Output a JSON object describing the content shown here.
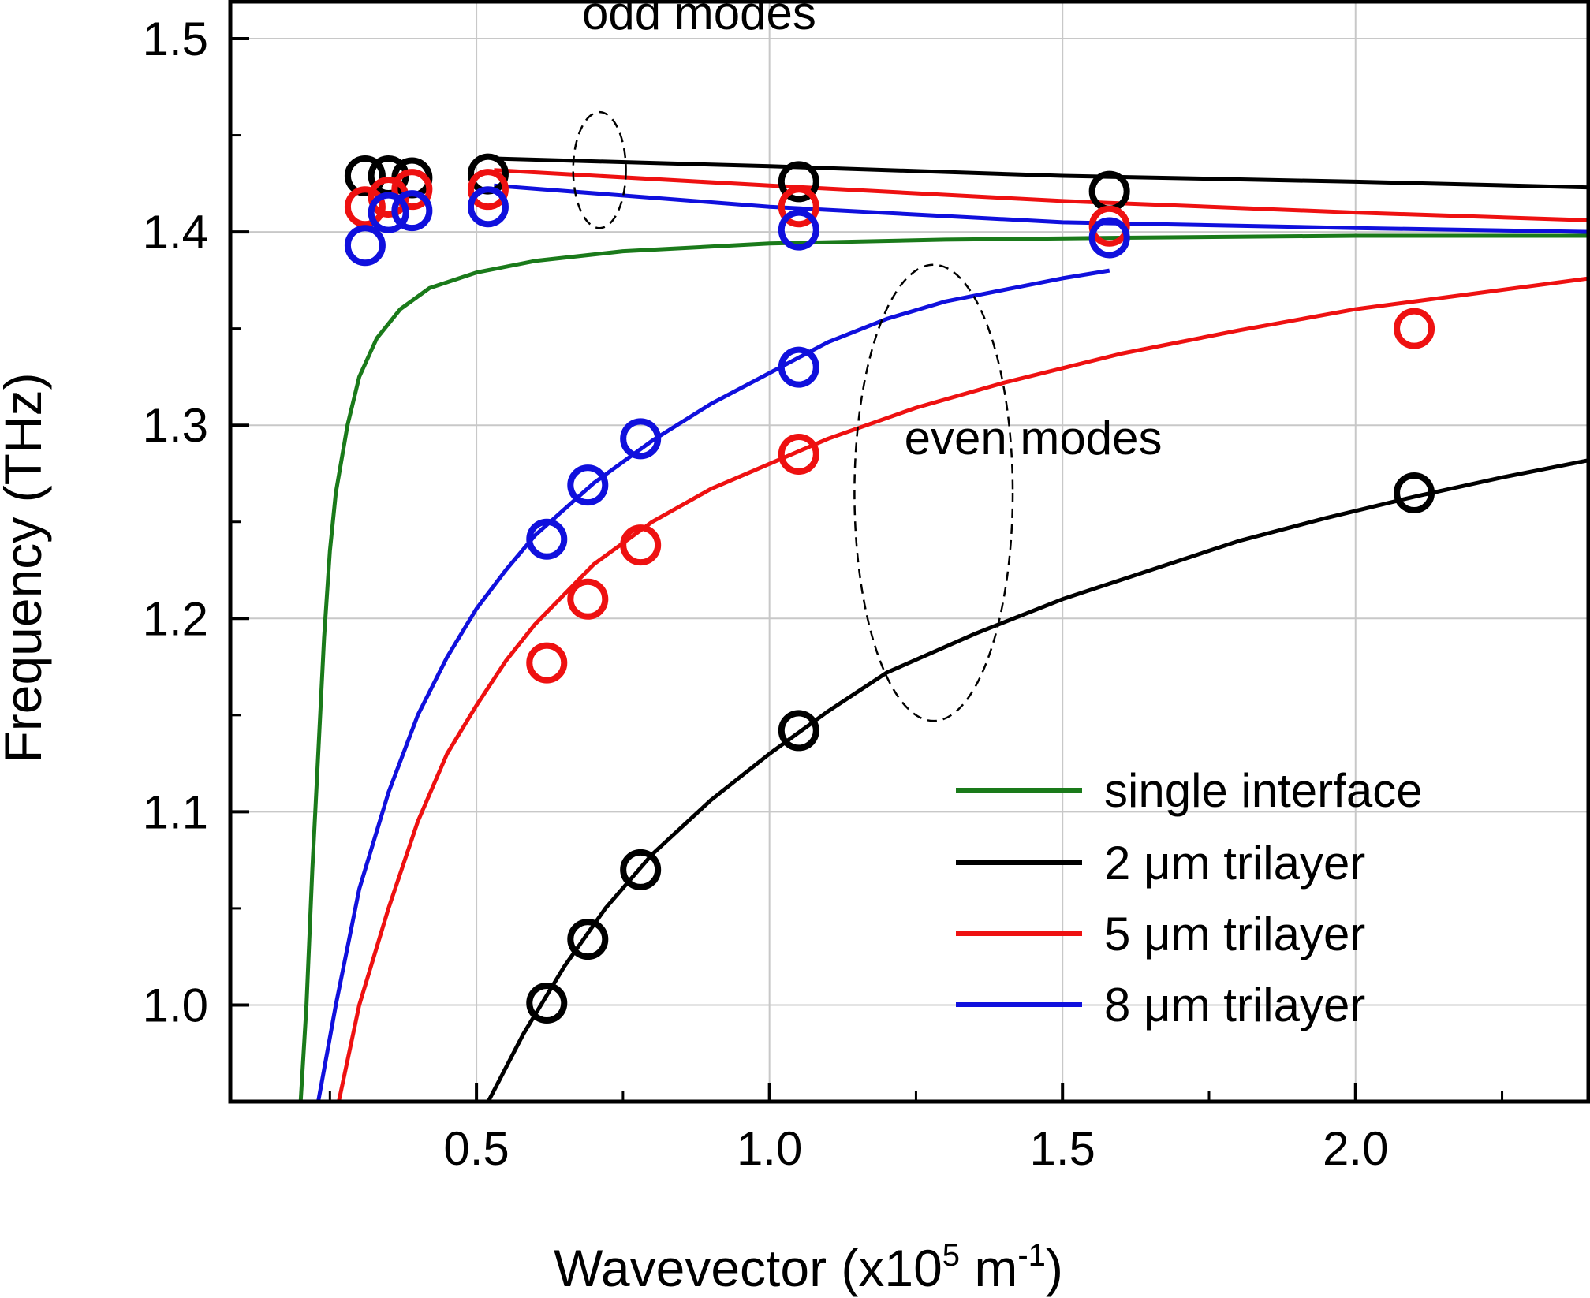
{
  "chart_data": {
    "type": "scatter",
    "xlabel_main": "Wavevector (x10",
    "xlabel_exp1": "5",
    "xlabel_mid": " m",
    "xlabel_exp2": "-1",
    "xlabel_end": ")",
    "ylabel": "Frequency (THz)",
    "xlim": [
      0.08,
      2.4
    ],
    "ylim": [
      0.95,
      1.52
    ],
    "grid": true,
    "x_ticks": [
      {
        "value": 0.5,
        "label": "0.5"
      },
      {
        "value": 1.0,
        "label": "1.0"
      },
      {
        "value": 1.5,
        "label": "1.5"
      },
      {
        "value": 2.0,
        "label": "2.0"
      }
    ],
    "y_ticks": [
      {
        "value": 1.0,
        "label": "1.0"
      },
      {
        "value": 1.1,
        "label": "1.1"
      },
      {
        "value": 1.2,
        "label": "1.2"
      },
      {
        "value": 1.3,
        "label": "1.3"
      },
      {
        "value": 1.4,
        "label": "1.4"
      },
      {
        "value": 1.5,
        "label": "1.5"
      }
    ],
    "legend_position": "bottom-right",
    "series": [
      {
        "name": "single interface",
        "color": "#1a7a1a",
        "lines": [
          [
            [
              0.2,
              0.95
            ],
            [
              0.21,
              1.0
            ],
            [
              0.22,
              1.07
            ],
            [
              0.23,
              1.13
            ],
            [
              0.24,
              1.19
            ],
            [
              0.25,
              1.235
            ],
            [
              0.26,
              1.265
            ],
            [
              0.28,
              1.3
            ],
            [
              0.3,
              1.325
            ],
            [
              0.33,
              1.345
            ],
            [
              0.37,
              1.36
            ],
            [
              0.42,
              1.371
            ],
            [
              0.5,
              1.379
            ],
            [
              0.6,
              1.385
            ],
            [
              0.75,
              1.39
            ],
            [
              1.0,
              1.394
            ],
            [
              1.3,
              1.396
            ],
            [
              1.6,
              1.397
            ],
            [
              2.0,
              1.398
            ],
            [
              2.4,
              1.398
            ]
          ]
        ],
        "points": []
      },
      {
        "name": "2 μm trilayer",
        "color": "#000000",
        "lines": [
          [
            [
              0.53,
              1.438
            ],
            [
              1.0,
              1.434
            ],
            [
              1.5,
              1.429
            ],
            [
              2.0,
              1.426
            ],
            [
              2.4,
              1.423
            ]
          ],
          [
            [
              0.52,
              0.95
            ],
            [
              0.58,
              0.985
            ],
            [
              0.65,
              1.02
            ],
            [
              0.72,
              1.05
            ],
            [
              0.8,
              1.078
            ],
            [
              0.9,
              1.106
            ],
            [
              1.0,
              1.13
            ],
            [
              1.1,
              1.152
            ],
            [
              1.2,
              1.172
            ],
            [
              1.35,
              1.192
            ],
            [
              1.5,
              1.21
            ],
            [
              1.65,
              1.225
            ],
            [
              1.8,
              1.24
            ],
            [
              1.95,
              1.252
            ],
            [
              2.1,
              1.263
            ],
            [
              2.25,
              1.273
            ],
            [
              2.4,
              1.282
            ]
          ]
        ],
        "points": [
          [
            0.31,
            1.429
          ],
          [
            0.35,
            1.429
          ],
          [
            0.39,
            1.428
          ],
          [
            0.52,
            1.43
          ],
          [
            1.05,
            1.426
          ],
          [
            1.58,
            1.421
          ],
          [
            0.62,
            1.001
          ],
          [
            0.69,
            1.034
          ],
          [
            0.78,
            1.07
          ],
          [
            1.05,
            1.142
          ],
          [
            2.1,
            1.265
          ]
        ]
      },
      {
        "name": "5 μm trilayer",
        "color": "#ee1111",
        "lines": [
          [
            [
              0.53,
              1.432
            ],
            [
              1.0,
              1.424
            ],
            [
              1.5,
              1.416
            ],
            [
              2.0,
              1.41
            ],
            [
              2.4,
              1.406
            ]
          ],
          [
            [
              0.265,
              0.95
            ],
            [
              0.3,
              1.0
            ],
            [
              0.35,
              1.05
            ],
            [
              0.4,
              1.095
            ],
            [
              0.45,
              1.13
            ],
            [
              0.5,
              1.155
            ],
            [
              0.55,
              1.178
            ],
            [
              0.6,
              1.197
            ],
            [
              0.7,
              1.228
            ],
            [
              0.8,
              1.25
            ],
            [
              0.9,
              1.267
            ],
            [
              1.0,
              1.28
            ],
            [
              1.1,
              1.293
            ],
            [
              1.25,
              1.309
            ],
            [
              1.4,
              1.322
            ],
            [
              1.6,
              1.337
            ],
            [
              1.8,
              1.349
            ],
            [
              2.0,
              1.36
            ],
            [
              2.2,
              1.368
            ],
            [
              2.4,
              1.376
            ]
          ]
        ],
        "points": [
          [
            0.31,
            1.413
          ],
          [
            0.35,
            1.418
          ],
          [
            0.39,
            1.422
          ],
          [
            0.52,
            1.422
          ],
          [
            1.05,
            1.413
          ],
          [
            1.58,
            1.403
          ],
          [
            0.62,
            1.177
          ],
          [
            0.69,
            1.21
          ],
          [
            0.78,
            1.238
          ],
          [
            1.05,
            1.285
          ],
          [
            2.1,
            1.35
          ]
        ]
      },
      {
        "name": "8 μm trilayer",
        "color": "#1010dd",
        "lines": [
          [
            [
              0.53,
              1.424
            ],
            [
              1.0,
              1.413
            ],
            [
              1.5,
              1.405
            ],
            [
              2.0,
              1.402
            ],
            [
              2.4,
              1.4
            ]
          ],
          [
            [
              0.23,
              0.95
            ],
            [
              0.26,
              1.0
            ],
            [
              0.3,
              1.06
            ],
            [
              0.35,
              1.11
            ],
            [
              0.4,
              1.15
            ],
            [
              0.45,
              1.18
            ],
            [
              0.5,
              1.205
            ],
            [
              0.55,
              1.225
            ],
            [
              0.6,
              1.243
            ],
            [
              0.7,
              1.27
            ],
            [
              0.8,
              1.292
            ],
            [
              0.9,
              1.311
            ],
            [
              1.0,
              1.327
            ],
            [
              1.1,
              1.343
            ],
            [
              1.2,
              1.355
            ],
            [
              1.3,
              1.364
            ],
            [
              1.4,
              1.37
            ],
            [
              1.5,
              1.376
            ],
            [
              1.58,
              1.38
            ]
          ]
        ],
        "points": [
          [
            0.31,
            1.393
          ],
          [
            0.35,
            1.41
          ],
          [
            0.39,
            1.411
          ],
          [
            0.52,
            1.413
          ],
          [
            1.05,
            1.401
          ],
          [
            1.58,
            1.397
          ],
          [
            0.62,
            1.241
          ],
          [
            0.69,
            1.269
          ],
          [
            0.78,
            1.293
          ],
          [
            1.05,
            1.33
          ]
        ]
      }
    ],
    "annotations": [
      {
        "text": "odd modes",
        "x": 0.88,
        "y": 1.505
      },
      {
        "text": "even modes",
        "x": 1.45,
        "y": 1.285
      }
    ],
    "ellipses": [
      {
        "cx": 0.71,
        "cy": 1.432,
        "rx": 0.045,
        "ry": 0.03
      },
      {
        "cx": 1.28,
        "cy": 1.265,
        "rx": 0.135,
        "ry": 0.118
      }
    ]
  }
}
